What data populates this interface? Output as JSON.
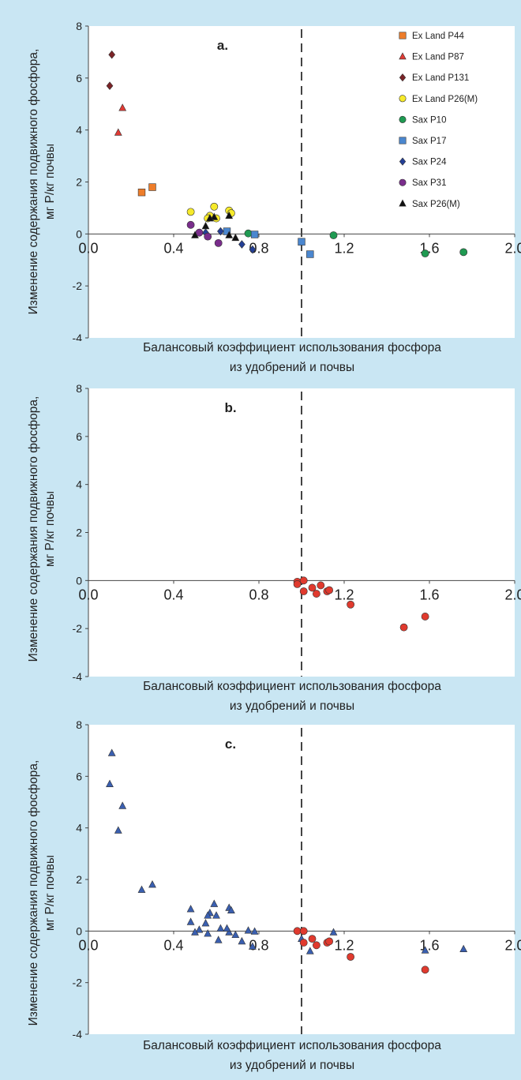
{
  "background_color": "#c9e6f3",
  "chart_data": [
    {
      "type": "scatter",
      "panel_label": "a.",
      "xlabel_line1": "Балансовый коэффициент использования фосфора",
      "xlabel_line2": "из удобрений и почвы",
      "ylabel_line1": "Изменение содержания подвижного фосфора,",
      "ylabel_line2": "мг Р/кг почвы",
      "xlim": [
        0,
        2.0
      ],
      "ylim": [
        -4,
        8
      ],
      "xticks": [
        "0.0",
        "0.4",
        "0.8",
        "1.2",
        "1.6",
        "2.0"
      ],
      "yticks": [
        "8",
        "6",
        "4",
        "2",
        "0",
        "-2",
        "-4"
      ],
      "reference_line_x": 1.0,
      "legend_position": "top-right",
      "series": [
        {
          "name": "Ex Land P44",
          "marker": "square",
          "color": "#ee7d2a",
          "points": [
            [
              0.25,
              1.6
            ],
            [
              0.3,
              1.8
            ]
          ]
        },
        {
          "name": "Ex Land P87",
          "marker": "triangle",
          "color": "#e03a34",
          "points": [
            [
              0.16,
              4.85
            ],
            [
              0.14,
              3.9
            ]
          ]
        },
        {
          "name": "Ex Land P131",
          "marker": "diamond",
          "color": "#7b2327",
          "points": [
            [
              0.11,
              6.9
            ],
            [
              0.1,
              5.7
            ]
          ]
        },
        {
          "name": "Ex Land P26(M)",
          "marker": "circle",
          "color": "#f6ea2a",
          "points": [
            [
              0.48,
              0.85
            ],
            [
              0.59,
              1.05
            ],
            [
              0.57,
              0.7
            ],
            [
              0.6,
              0.6
            ],
            [
              0.66,
              0.9
            ],
            [
              0.67,
              0.8
            ],
            [
              0.56,
              0.6
            ]
          ]
        },
        {
          "name": "Sax P10",
          "marker": "circle",
          "color": "#1f9a52",
          "points": [
            [
              0.75,
              0.02
            ],
            [
              1.15,
              -0.05
            ],
            [
              1.58,
              -0.75
            ],
            [
              1.76,
              -0.7
            ]
          ]
        },
        {
          "name": "Sax P17",
          "marker": "square",
          "color": "#4b87cf",
          "points": [
            [
              0.65,
              0.1
            ],
            [
              0.78,
              -0.02
            ],
            [
              1.0,
              -0.3
            ],
            [
              1.04,
              -0.78
            ]
          ]
        },
        {
          "name": "Sax P24",
          "marker": "diamond",
          "color": "#233f96",
          "points": [
            [
              0.62,
              0.1
            ],
            [
              0.72,
              -0.4
            ],
            [
              0.77,
              -0.6
            ],
            [
              0.55,
              0.05
            ]
          ]
        },
        {
          "name": "Sax P31",
          "marker": "circle",
          "color": "#7a2d8c",
          "points": [
            [
              0.48,
              0.35
            ],
            [
              0.52,
              0.05
            ],
            [
              0.56,
              -0.1
            ],
            [
              0.61,
              -0.35
            ]
          ]
        },
        {
          "name": "Sax P26(M)",
          "marker": "triangle",
          "color": "#111111",
          "points": [
            [
              0.5,
              -0.05
            ],
            [
              0.55,
              0.3
            ],
            [
              0.59,
              0.65
            ],
            [
              0.66,
              0.7
            ],
            [
              0.66,
              -0.05
            ],
            [
              0.69,
              -0.15
            ],
            [
              0.57,
              0.6
            ]
          ]
        }
      ]
    },
    {
      "type": "scatter",
      "panel_label": "b.",
      "xlabel_line1": "Балансовый коэффициент использования фосфора",
      "xlabel_line2": "из удобрений и почвы",
      "ylabel_line1": "Изменение содержания подвижного фосфора,",
      "ylabel_line2": "мг Р/кг почвы",
      "xlim": [
        0,
        2.0
      ],
      "ylim": [
        -4,
        8
      ],
      "xticks": [
        "0.0",
        "0.4",
        "0.8",
        "1.2",
        "1.6",
        "2.0"
      ],
      "yticks": [
        "8",
        "6",
        "4",
        "2",
        "0",
        "-2",
        "-4"
      ],
      "reference_line_x": 1.0,
      "series": [
        {
          "marker": "circle",
          "color": "#e03a2e",
          "points": [
            [
              0.98,
              -0.05
            ],
            [
              0.98,
              -0.15
            ],
            [
              1.01,
              0.0
            ],
            [
              1.01,
              -0.45
            ],
            [
              1.05,
              -0.3
            ],
            [
              1.07,
              -0.55
            ],
            [
              1.09,
              -0.2
            ],
            [
              1.12,
              -0.45
            ],
            [
              1.13,
              -0.4
            ],
            [
              1.23,
              -1.0
            ],
            [
              1.48,
              -1.95
            ],
            [
              1.58,
              -1.5
            ]
          ]
        }
      ]
    },
    {
      "type": "scatter",
      "panel_label": "c.",
      "xlabel_line1": "Балансовый коэффициент использования фосфора",
      "xlabel_line2": "из удобрений и почвы",
      "ylabel_line1": "Изменение содержания подвижного фосфора,",
      "ylabel_line2": "мг Р/кг почвы",
      "xlim": [
        0,
        2.0
      ],
      "ylim": [
        -4,
        8
      ],
      "xticks": [
        "0.0",
        "0.4",
        "0.8",
        "1.2",
        "1.6",
        "2.0"
      ],
      "yticks": [
        "8",
        "6",
        "4",
        "2",
        "0",
        "-2",
        "-4"
      ],
      "reference_line_x": 1.0,
      "series": [
        {
          "marker": "triangle",
          "color": "#3a5fb0",
          "points": [
            [
              0.11,
              6.9
            ],
            [
              0.1,
              5.7
            ],
            [
              0.16,
              4.85
            ],
            [
              0.14,
              3.9
            ],
            [
              0.25,
              1.6
            ],
            [
              0.3,
              1.8
            ],
            [
              0.48,
              0.85
            ],
            [
              0.59,
              1.05
            ],
            [
              0.57,
              0.7
            ],
            [
              0.6,
              0.6
            ],
            [
              0.66,
              0.9
            ],
            [
              0.67,
              0.8
            ],
            [
              0.56,
              0.6
            ],
            [
              0.48,
              0.35
            ],
            [
              0.52,
              0.05
            ],
            [
              0.56,
              -0.1
            ],
            [
              0.61,
              -0.35
            ],
            [
              0.5,
              -0.05
            ],
            [
              0.55,
              0.3
            ],
            [
              0.66,
              -0.05
            ],
            [
              0.69,
              -0.15
            ],
            [
              0.62,
              0.1
            ],
            [
              0.65,
              0.1
            ],
            [
              0.72,
              -0.4
            ],
            [
              0.77,
              -0.6
            ],
            [
              0.75,
              0.02
            ],
            [
              0.78,
              -0.02
            ],
            [
              1.0,
              -0.3
            ],
            [
              1.04,
              -0.78
            ],
            [
              1.15,
              -0.05
            ],
            [
              1.58,
              -0.75
            ],
            [
              1.76,
              -0.7
            ]
          ]
        },
        {
          "marker": "circle",
          "color": "#e03a2e",
          "points": [
            [
              0.98,
              0.0
            ],
            [
              1.01,
              0.0
            ],
            [
              1.01,
              -0.45
            ],
            [
              1.05,
              -0.3
            ],
            [
              1.07,
              -0.55
            ],
            [
              1.12,
              -0.45
            ],
            [
              1.13,
              -0.4
            ],
            [
              1.23,
              -1.0
            ],
            [
              1.58,
              -1.5
            ]
          ]
        }
      ]
    }
  ]
}
